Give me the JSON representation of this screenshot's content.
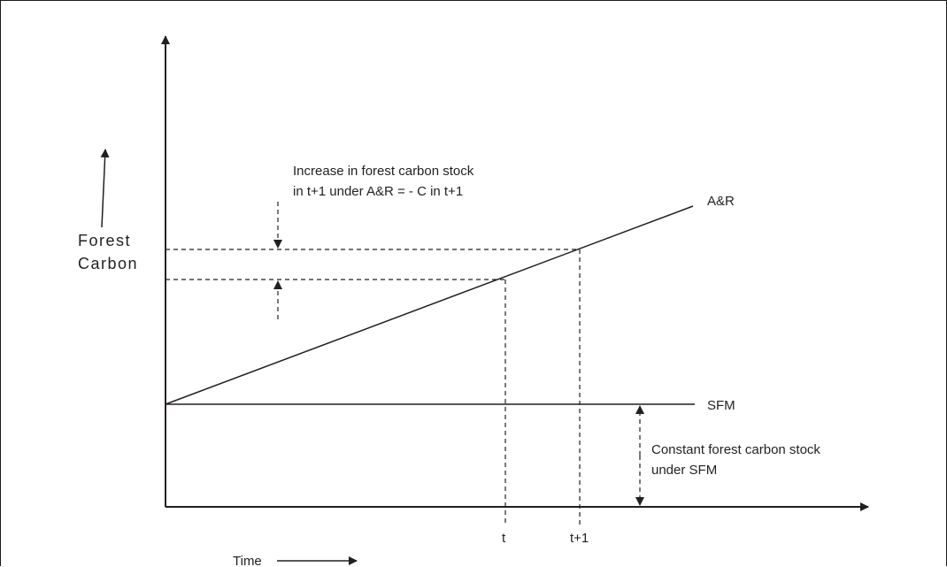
{
  "diagram": {
    "y_axis_label_line1": "Forest",
    "y_axis_label_line2": "Carbon",
    "x_axis_label": "Time",
    "line_ar_label": "A&R",
    "line_sfm_label": "SFM",
    "tick_t": "t",
    "tick_t1": "t+1",
    "annotation_increase_line1": "Increase in forest carbon stock",
    "annotation_increase_line2": "in t+1 under A&R = - C in t+1",
    "annotation_constant_line1": "Constant forest carbon stock",
    "annotation_constant_line2": "under SFM",
    "colors": {
      "ink": "#231f20",
      "background": "#ffffff"
    }
  }
}
